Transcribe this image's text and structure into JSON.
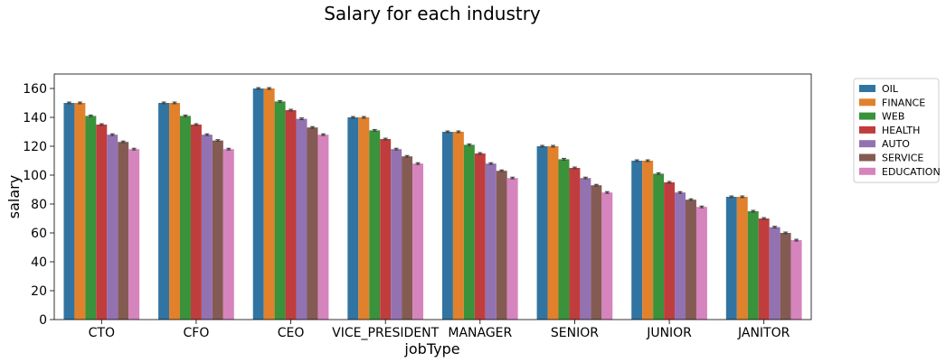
{
  "chart_data": {
    "type": "bar",
    "title": "Salary for each industry",
    "xlabel": "jobType",
    "ylabel": "salary",
    "ylim": [
      0,
      170
    ],
    "yticks": [
      0,
      20,
      40,
      60,
      80,
      100,
      120,
      140,
      160
    ],
    "categories": [
      "CTO",
      "CFO",
      "CEO",
      "VICE_PRESIDENT",
      "MANAGER",
      "SENIOR",
      "JUNIOR",
      "JANITOR"
    ],
    "legend_position": "outside-top-right",
    "grid": false,
    "error_bars": true,
    "series": [
      {
        "name": "OIL",
        "color": "#3274a1",
        "values": [
          150,
          150,
          160,
          140,
          130,
          120,
          110,
          85
        ]
      },
      {
        "name": "FINANCE",
        "color": "#e1812c",
        "values": [
          150,
          150,
          160,
          140,
          130,
          120,
          110,
          85
        ]
      },
      {
        "name": "WEB",
        "color": "#3a923a",
        "values": [
          141,
          141,
          151,
          131,
          121,
          111,
          101,
          75
        ]
      },
      {
        "name": "HEALTH",
        "color": "#c03d3e",
        "values": [
          135,
          135,
          145,
          125,
          115,
          105,
          95,
          70
        ]
      },
      {
        "name": "AUTO",
        "color": "#9372b2",
        "values": [
          128,
          128,
          139,
          118,
          108,
          98,
          88,
          64
        ]
      },
      {
        "name": "SERVICE",
        "color": "#845b53",
        "values": [
          123,
          124,
          133,
          113,
          103,
          93,
          83,
          60
        ]
      },
      {
        "name": "EDUCATION",
        "color": "#d684bd",
        "values": [
          118,
          118,
          128,
          108,
          98,
          88,
          78,
          55
        ]
      }
    ]
  }
}
